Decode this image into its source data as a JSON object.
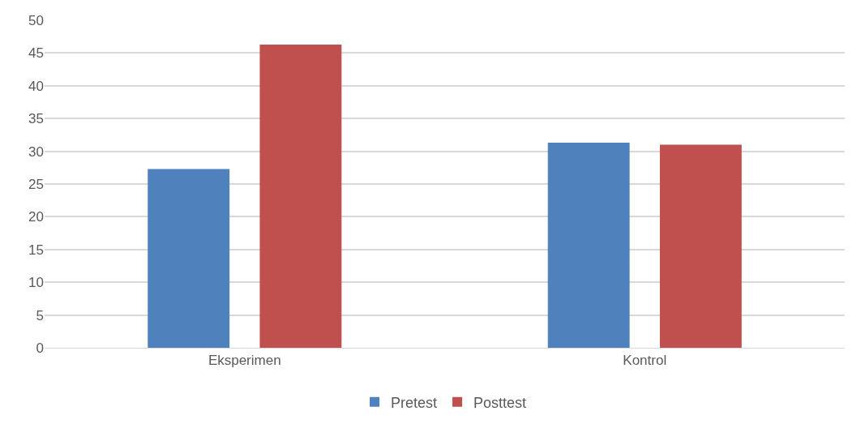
{
  "chart_data": {
    "type": "bar",
    "categories": [
      "Eksperimen",
      "Kontrol"
    ],
    "series": [
      {
        "name": "Pretest",
        "color": "#4f81bd",
        "values": [
          27.3,
          31.3
        ]
      },
      {
        "name": "Posttest",
        "color": "#c0504d",
        "values": [
          46.3,
          31.0
        ]
      }
    ],
    "ylim": [
      0,
      50
    ],
    "yticks": [
      0,
      5,
      10,
      15,
      20,
      25,
      30,
      35,
      40,
      45,
      50
    ],
    "grid": "y",
    "legend": "bottom"
  }
}
